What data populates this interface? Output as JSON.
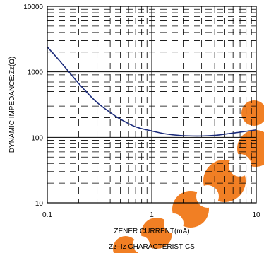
{
  "chart_data": {
    "type": "line",
    "title": "Zz–Iz CHARACTERISTICS",
    "xlabel": "ZENER CURRENT(mA)",
    "ylabel": "DYNAMIC IMPEDANCE:Zz(Ω)",
    "x_scale": "log",
    "y_scale": "log",
    "xlim": [
      0.1,
      10
    ],
    "ylim": [
      10,
      10000
    ],
    "x_ticks": [
      {
        "value": 0.1,
        "label": "0.1"
      },
      {
        "value": 1,
        "label": "1"
      },
      {
        "value": 10,
        "label": "10"
      }
    ],
    "y_ticks": [
      {
        "value": 10,
        "label": "10"
      },
      {
        "value": 100,
        "label": "100"
      },
      {
        "value": 1000,
        "label": "1000"
      },
      {
        "value": 10000,
        "label": "10000"
      }
    ],
    "grid": true,
    "series": [
      {
        "color": "#1a2a7a",
        "x": [
          0.1,
          0.13,
          0.17,
          0.22,
          0.3,
          0.4,
          0.5,
          0.7,
          1.0,
          1.4,
          2.0,
          3.0,
          4.0,
          5.0,
          7.0,
          10.0
        ],
        "y": [
          2400,
          1500,
          900,
          560,
          340,
          240,
          190,
          145,
          125,
          112,
          106,
          105,
          107,
          112,
          120,
          130
        ]
      }
    ]
  },
  "colors": {
    "frame": "#000000",
    "grid_minor": "#000000",
    "watermark": "#f07818"
  }
}
